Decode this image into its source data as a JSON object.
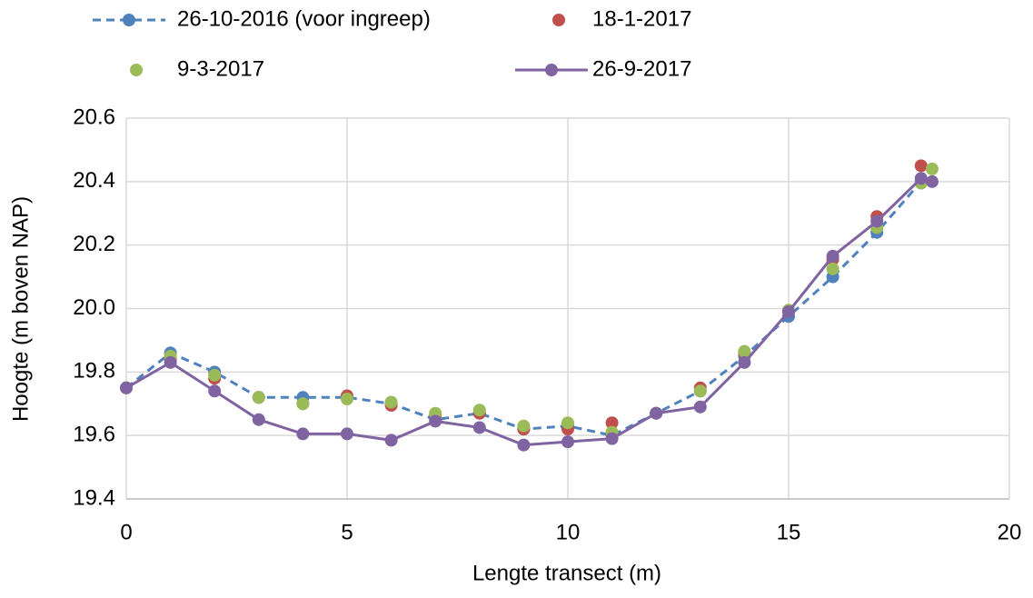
{
  "chart_data": {
    "type": "scatter",
    "xlabel": "Lengte transect (m)",
    "ylabel": "Hoogte (m boven NAP)",
    "xlim": [
      0,
      20
    ],
    "xticks": [
      0,
      5,
      10,
      15,
      20
    ],
    "ylim": [
      19.4,
      20.6
    ],
    "yticks": [
      19.4,
      19.6,
      19.8,
      {
        "value": 20,
        "label": "20.0"
      },
      20.2,
      20.4,
      20.6
    ],
    "grid": true,
    "series": [
      {
        "name": "26-10-2016 (voor ingreep)",
        "color": "#4f81bd",
        "line_style": "dashed",
        "x": [
          0,
          1,
          2,
          3,
          4,
          5,
          6,
          7,
          8,
          9,
          10,
          11,
          12,
          13,
          14,
          15,
          16,
          17,
          18
        ],
        "values": [
          19.75,
          19.86,
          19.8,
          19.72,
          19.72,
          19.72,
          19.7,
          19.65,
          19.67,
          19.62,
          19.63,
          19.6,
          19.67,
          19.74,
          19.85,
          19.975,
          20.1,
          20.24,
          20.4
        ]
      },
      {
        "name": "18-1-2017",
        "color": "#c0504d",
        "x": [
          0,
          1,
          2,
          3,
          4,
          5,
          6,
          7,
          8,
          9,
          10,
          11,
          12,
          13,
          14,
          15,
          16,
          17,
          18
        ],
        "values": [
          19.75,
          19.84,
          19.78,
          19.72,
          19.7,
          19.725,
          19.695,
          19.665,
          19.67,
          19.62,
          19.62,
          19.64,
          19.67,
          19.75,
          19.86,
          19.99,
          20.155,
          20.29,
          20.45
        ]
      },
      {
        "name": "9-3-2017",
        "color": "#9bbb59",
        "x": [
          0,
          1,
          2,
          3,
          4,
          5,
          6,
          7,
          8,
          9,
          10,
          11,
          12,
          13,
          14,
          15,
          16,
          17,
          18,
          18.25
        ],
        "values": [
          19.75,
          19.85,
          19.79,
          19.72,
          19.7,
          19.715,
          19.705,
          19.67,
          19.68,
          19.63,
          19.64,
          19.61,
          19.67,
          19.74,
          19.865,
          19.995,
          20.125,
          20.255,
          20.395,
          20.44
        ]
      },
      {
        "name": "26-9-2017",
        "color": "#8064a2",
        "line_style": "solid",
        "x": [
          0,
          1,
          2,
          3,
          4,
          5,
          6,
          7,
          8,
          9,
          10,
          11,
          12,
          13,
          14,
          15,
          16,
          17,
          18,
          18.25
        ],
        "values": [
          19.75,
          19.83,
          19.74,
          19.65,
          19.605,
          19.605,
          19.585,
          19.645,
          19.625,
          19.57,
          19.58,
          19.59,
          19.67,
          19.69,
          19.83,
          19.99,
          20.165,
          20.275,
          20.41,
          20.4
        ]
      }
    ]
  }
}
